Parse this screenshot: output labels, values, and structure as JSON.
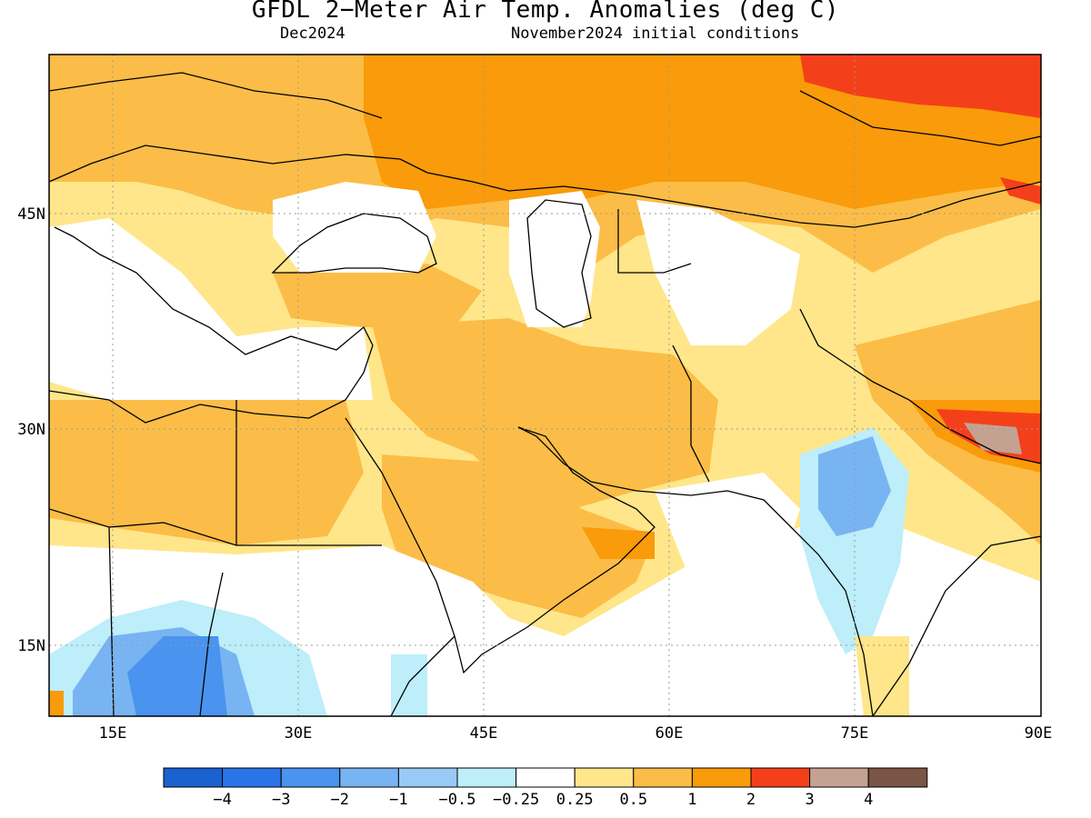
{
  "title": "GFDL 2−Meter Air Temp. Anomalies (deg C)",
  "valid_month": "Dec2024",
  "initial_conditions": "November2024 initial conditions",
  "axes": {
    "x_ticks": [
      "15E",
      "30E",
      "45E",
      "60E",
      "75E",
      "90E"
    ],
    "y_ticks": [
      "45N",
      "30N",
      "15N"
    ],
    "lon_range": [
      10,
      90
    ],
    "lat_range": [
      10,
      56
    ],
    "grid_lines": "dotted"
  },
  "colorbar": {
    "colors": [
      "#1a62d0",
      "#2a74e8",
      "#4a93ee",
      "#78b4f2",
      "#97cbf5",
      "#bdeefa",
      "#ffffff",
      "#ffe68a",
      "#fbbd47",
      "#f99b0a",
      "#f4401a",
      "#c4a292",
      "#7a5546"
    ],
    "labels": [
      "−4",
      "−3",
      "−2",
      "−1",
      "−0.5",
      "−0.25",
      "0.25",
      "0.5",
      "1",
      "2",
      "3",
      "4"
    ]
  },
  "colors": {
    "ocean": "#ffffff",
    "coastline": "#000000",
    "frame": "#000000",
    "grid": "#9a9a9a"
  }
}
